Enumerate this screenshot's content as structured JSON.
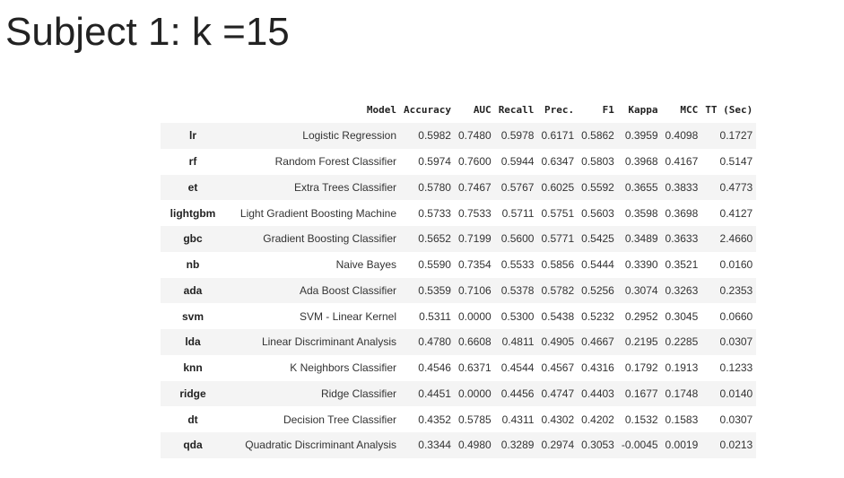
{
  "title": "Subject 1: k =15",
  "table": {
    "columns": [
      "",
      "Model",
      "Accuracy",
      "AUC",
      "Recall",
      "Prec.",
      "F1",
      "Kappa",
      "MCC",
      "TT (Sec)"
    ],
    "rows": [
      [
        "lr",
        "Logistic Regression",
        "0.5982",
        "0.7480",
        "0.5978",
        "0.6171",
        "0.5862",
        "0.3959",
        "0.4098",
        "0.1727"
      ],
      [
        "rf",
        "Random Forest Classifier",
        "0.5974",
        "0.7600",
        "0.5944",
        "0.6347",
        "0.5803",
        "0.3968",
        "0.4167",
        "0.5147"
      ],
      [
        "et",
        "Extra Trees Classifier",
        "0.5780",
        "0.7467",
        "0.5767",
        "0.6025",
        "0.5592",
        "0.3655",
        "0.3833",
        "0.4773"
      ],
      [
        "lightgbm",
        "Light Gradient Boosting Machine",
        "0.5733",
        "0.7533",
        "0.5711",
        "0.5751",
        "0.5603",
        "0.3598",
        "0.3698",
        "0.4127"
      ],
      [
        "gbc",
        "Gradient Boosting Classifier",
        "0.5652",
        "0.7199",
        "0.5600",
        "0.5771",
        "0.5425",
        "0.3489",
        "0.3633",
        "2.4660"
      ],
      [
        "nb",
        "Naive Bayes",
        "0.5590",
        "0.7354",
        "0.5533",
        "0.5856",
        "0.5444",
        "0.3390",
        "0.3521",
        "0.0160"
      ],
      [
        "ada",
        "Ada Boost Classifier",
        "0.5359",
        "0.7106",
        "0.5378",
        "0.5782",
        "0.5256",
        "0.3074",
        "0.3263",
        "0.2353"
      ],
      [
        "svm",
        "SVM - Linear Kernel",
        "0.5311",
        "0.0000",
        "0.5300",
        "0.5438",
        "0.5232",
        "0.2952",
        "0.3045",
        "0.0660"
      ],
      [
        "lda",
        "Linear Discriminant Analysis",
        "0.4780",
        "0.6608",
        "0.4811",
        "0.4905",
        "0.4667",
        "0.2195",
        "0.2285",
        "0.0307"
      ],
      [
        "knn",
        "K Neighbors Classifier",
        "0.4546",
        "0.6371",
        "0.4544",
        "0.4567",
        "0.4316",
        "0.1792",
        "0.1913",
        "0.1233"
      ],
      [
        "ridge",
        "Ridge Classifier",
        "0.4451",
        "0.0000",
        "0.4456",
        "0.4747",
        "0.4403",
        "0.1677",
        "0.1748",
        "0.0140"
      ],
      [
        "dt",
        "Decision Tree Classifier",
        "0.4352",
        "0.5785",
        "0.4311",
        "0.4302",
        "0.4202",
        "0.1532",
        "0.1583",
        "0.0307"
      ],
      [
        "qda",
        "Quadratic Discriminant Analysis",
        "0.3344",
        "0.4980",
        "0.3289",
        "0.2974",
        "0.3053",
        "-0.0045",
        "0.0019",
        "0.0213"
      ]
    ]
  }
}
